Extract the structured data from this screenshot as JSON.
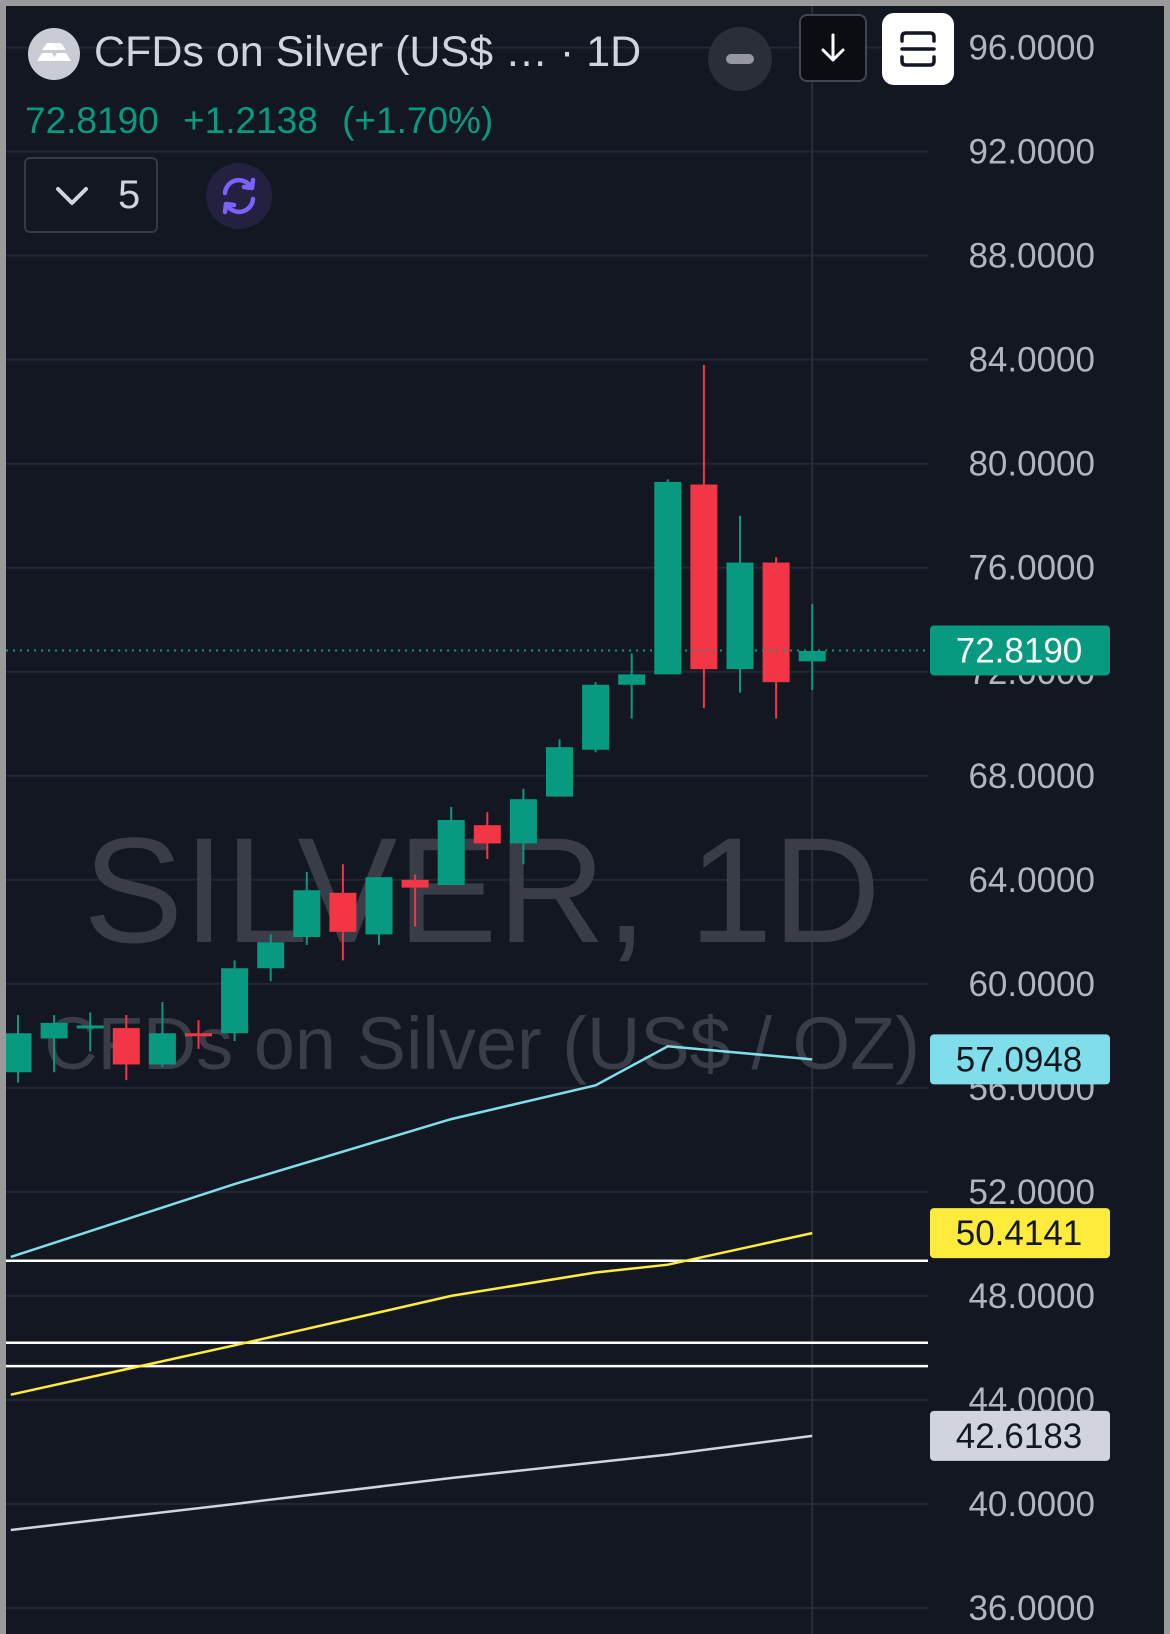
{
  "header": {
    "title": "CFDs on Silver (US$ … · 1D",
    "last_price": "72.8190",
    "change": "+1.2138",
    "change_pct": "(+1.70%)",
    "indicator_count": "5",
    "logo_icon": "silver-bars-icon",
    "buttons": [
      "minus-icon",
      "arrow-down-icon",
      "expand-icon",
      "chevron-down-icon",
      "sync-icon"
    ]
  },
  "watermark": {
    "symbol": "SILVER, 1D",
    "description": "CFDs on Silver (US$ / OZ)"
  },
  "colors": {
    "background": "#131722",
    "up": "#089981",
    "down": "#f23645",
    "sma_fast": "#80deea",
    "sma_mid": "#ffeb3b",
    "sma_slow": "#d1d4dc",
    "level_line": "#ffffff"
  },
  "chart_data": {
    "type": "candlestick",
    "timeframe": "1D",
    "y_axis": {
      "ticks": [
        "96.0000",
        "92.0000",
        "88.0000",
        "84.0000",
        "80.0000",
        "76.0000",
        "72.0000",
        "68.0000",
        "64.0000",
        "60.0000",
        "56.0000",
        "52.0000",
        "48.0000",
        "44.0000",
        "40.0000",
        "36.0000"
      ],
      "range": [
        35.0,
        97.6
      ]
    },
    "candles": [
      {
        "o": 56.6,
        "h": 58.8,
        "c": 58.1,
        "l": 56.2
      },
      {
        "o": 57.9,
        "h": 58.8,
        "c": 58.5,
        "l": 56.6
      },
      {
        "o": 58.3,
        "h": 58.9,
        "c": 58.4,
        "l": 57.4
      },
      {
        "o": 58.3,
        "h": 58.8,
        "c": 56.9,
        "l": 56.3
      },
      {
        "o": 56.9,
        "h": 59.3,
        "c": 58.1,
        "l": 56.8
      },
      {
        "o": 58.1,
        "h": 58.6,
        "c": 58.0,
        "l": 57.5
      },
      {
        "o": 58.1,
        "h": 60.9,
        "c": 60.6,
        "l": 57.8
      },
      {
        "o": 60.6,
        "h": 61.9,
        "c": 61.6,
        "l": 60.1
      },
      {
        "o": 61.8,
        "h": 64.3,
        "c": 63.6,
        "l": 61.5
      },
      {
        "o": 63.5,
        "h": 64.6,
        "c": 62.0,
        "l": 60.9
      },
      {
        "o": 61.9,
        "h": 64.1,
        "c": 64.1,
        "l": 61.5
      },
      {
        "o": 64.0,
        "h": 64.2,
        "c": 63.7,
        "l": 62.2
      },
      {
        "o": 63.8,
        "h": 66.8,
        "c": 66.3,
        "l": 63.8
      },
      {
        "o": 66.1,
        "h": 66.6,
        "c": 65.4,
        "l": 64.8
      },
      {
        "o": 65.4,
        "h": 67.5,
        "c": 67.1,
        "l": 64.6
      },
      {
        "o": 67.2,
        "h": 69.4,
        "c": 69.1,
        "l": 67.2
      },
      {
        "o": 69.0,
        "h": 71.6,
        "c": 71.5,
        "l": 68.9
      },
      {
        "o": 71.5,
        "h": 72.7,
        "c": 71.9,
        "l": 70.2
      },
      {
        "o": 71.9,
        "h": 79.4,
        "c": 79.3,
        "l": 71.9
      },
      {
        "o": 79.2,
        "h": 83.8,
        "c": 72.1,
        "l": 70.6
      },
      {
        "o": 72.1,
        "h": 78.0,
        "c": 76.2,
        "l": 71.2
      },
      {
        "o": 76.2,
        "h": 76.4,
        "c": 71.6,
        "l": 70.2
      },
      {
        "o": 72.4,
        "h": 74.6,
        "c": 72.8,
        "l": 71.3
      }
    ],
    "moving_averages": [
      {
        "color": "#80deea",
        "points": [
          [
            -0.2,
            49.5
          ],
          [
            6,
            52.3
          ],
          [
            12,
            54.8
          ],
          [
            16,
            56.1
          ],
          [
            18,
            57.6
          ],
          [
            22,
            57.0948
          ]
        ],
        "value": "57.0948"
      },
      {
        "color": "#ffeb3b",
        "points": [
          [
            -0.2,
            44.2
          ],
          [
            6,
            46.1
          ],
          [
            12,
            48.0
          ],
          [
            16,
            48.9
          ],
          [
            18,
            49.2
          ],
          [
            22,
            50.4141
          ]
        ],
        "value": "50.4141"
      },
      {
        "color": "#d1d4dc",
        "points": [
          [
            -0.2,
            39.0
          ],
          [
            6,
            40.0
          ],
          [
            12,
            41.0
          ],
          [
            16,
            41.6
          ],
          [
            18,
            41.9
          ],
          [
            22,
            42.6183
          ]
        ],
        "value": "42.6183"
      }
    ],
    "horizontal_levels": [
      49.35,
      46.2,
      45.3
    ],
    "last_price_line": 72.819,
    "price_badges": [
      {
        "value": "72.8190",
        "y": 72.819,
        "bg": "#089981",
        "fg": "#ffffff"
      },
      {
        "value": "57.0948",
        "y": 57.0948,
        "bg": "#80deea",
        "fg": "#131722"
      },
      {
        "value": "50.4141",
        "y": 50.4141,
        "bg": "#ffeb3b",
        "fg": "#131722"
      },
      {
        "value": "42.6183",
        "y": 42.6183,
        "bg": "#d1d4dc",
        "fg": "#131722"
      }
    ],
    "grid": true,
    "crosshair_x_index": 22
  }
}
